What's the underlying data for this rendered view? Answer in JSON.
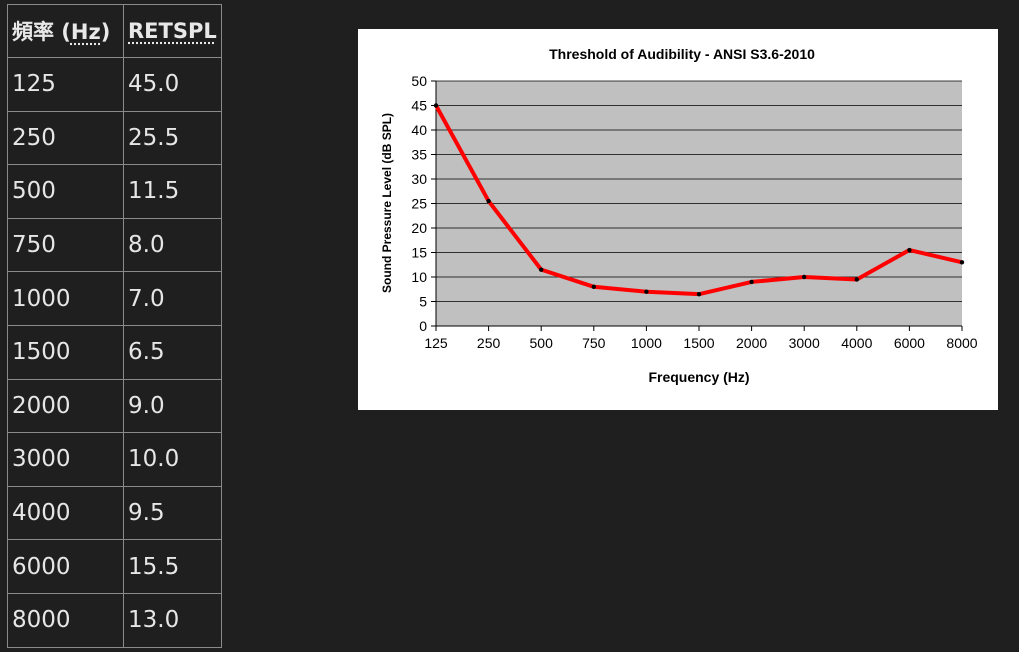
{
  "table": {
    "header": {
      "col1_prefix": "頻率 (",
      "col1_abbr": "Hz",
      "col1_suffix": ")",
      "col2": "RETSPL"
    },
    "rows": [
      {
        "freq": "125",
        "retspl": "45.0"
      },
      {
        "freq": "250",
        "retspl": "25.5"
      },
      {
        "freq": "500",
        "retspl": "11.5"
      },
      {
        "freq": "750",
        "retspl": "8.0"
      },
      {
        "freq": "1000",
        "retspl": "7.0"
      },
      {
        "freq": "1500",
        "retspl": "6.5"
      },
      {
        "freq": "2000",
        "retspl": "9.0"
      },
      {
        "freq": "3000",
        "retspl": "10.0"
      },
      {
        "freq": "4000",
        "retspl": "9.5"
      },
      {
        "freq": "6000",
        "retspl": "15.5"
      },
      {
        "freq": "8000",
        "retspl": "13.0"
      }
    ]
  },
  "chart_data": {
    "type": "line",
    "title": "Threshold of Audibility  - ANSI S3.6-2010",
    "xlabel": "Frequency  (Hz)",
    "ylabel": "Sound Pressure Level (dB SPL)",
    "categories": [
      "125",
      "250",
      "500",
      "750",
      "1000",
      "1500",
      "2000",
      "3000",
      "4000",
      "6000",
      "8000"
    ],
    "series": [
      {
        "values": [
          45.0,
          25.5,
          11.5,
          8.0,
          7.0,
          6.5,
          9.0,
          10.0,
          9.5,
          15.5,
          13.0
        ]
      }
    ],
    "ylim": [
      0,
      50
    ],
    "yticks": [
      0,
      5,
      10,
      15,
      20,
      25,
      30,
      35,
      40,
      45,
      50
    ],
    "grid": true,
    "legend": "none",
    "colors": {
      "line": "#ff0000",
      "marker": "#000000",
      "plot_background": "#c0c0c0",
      "grid": "#000000"
    }
  }
}
